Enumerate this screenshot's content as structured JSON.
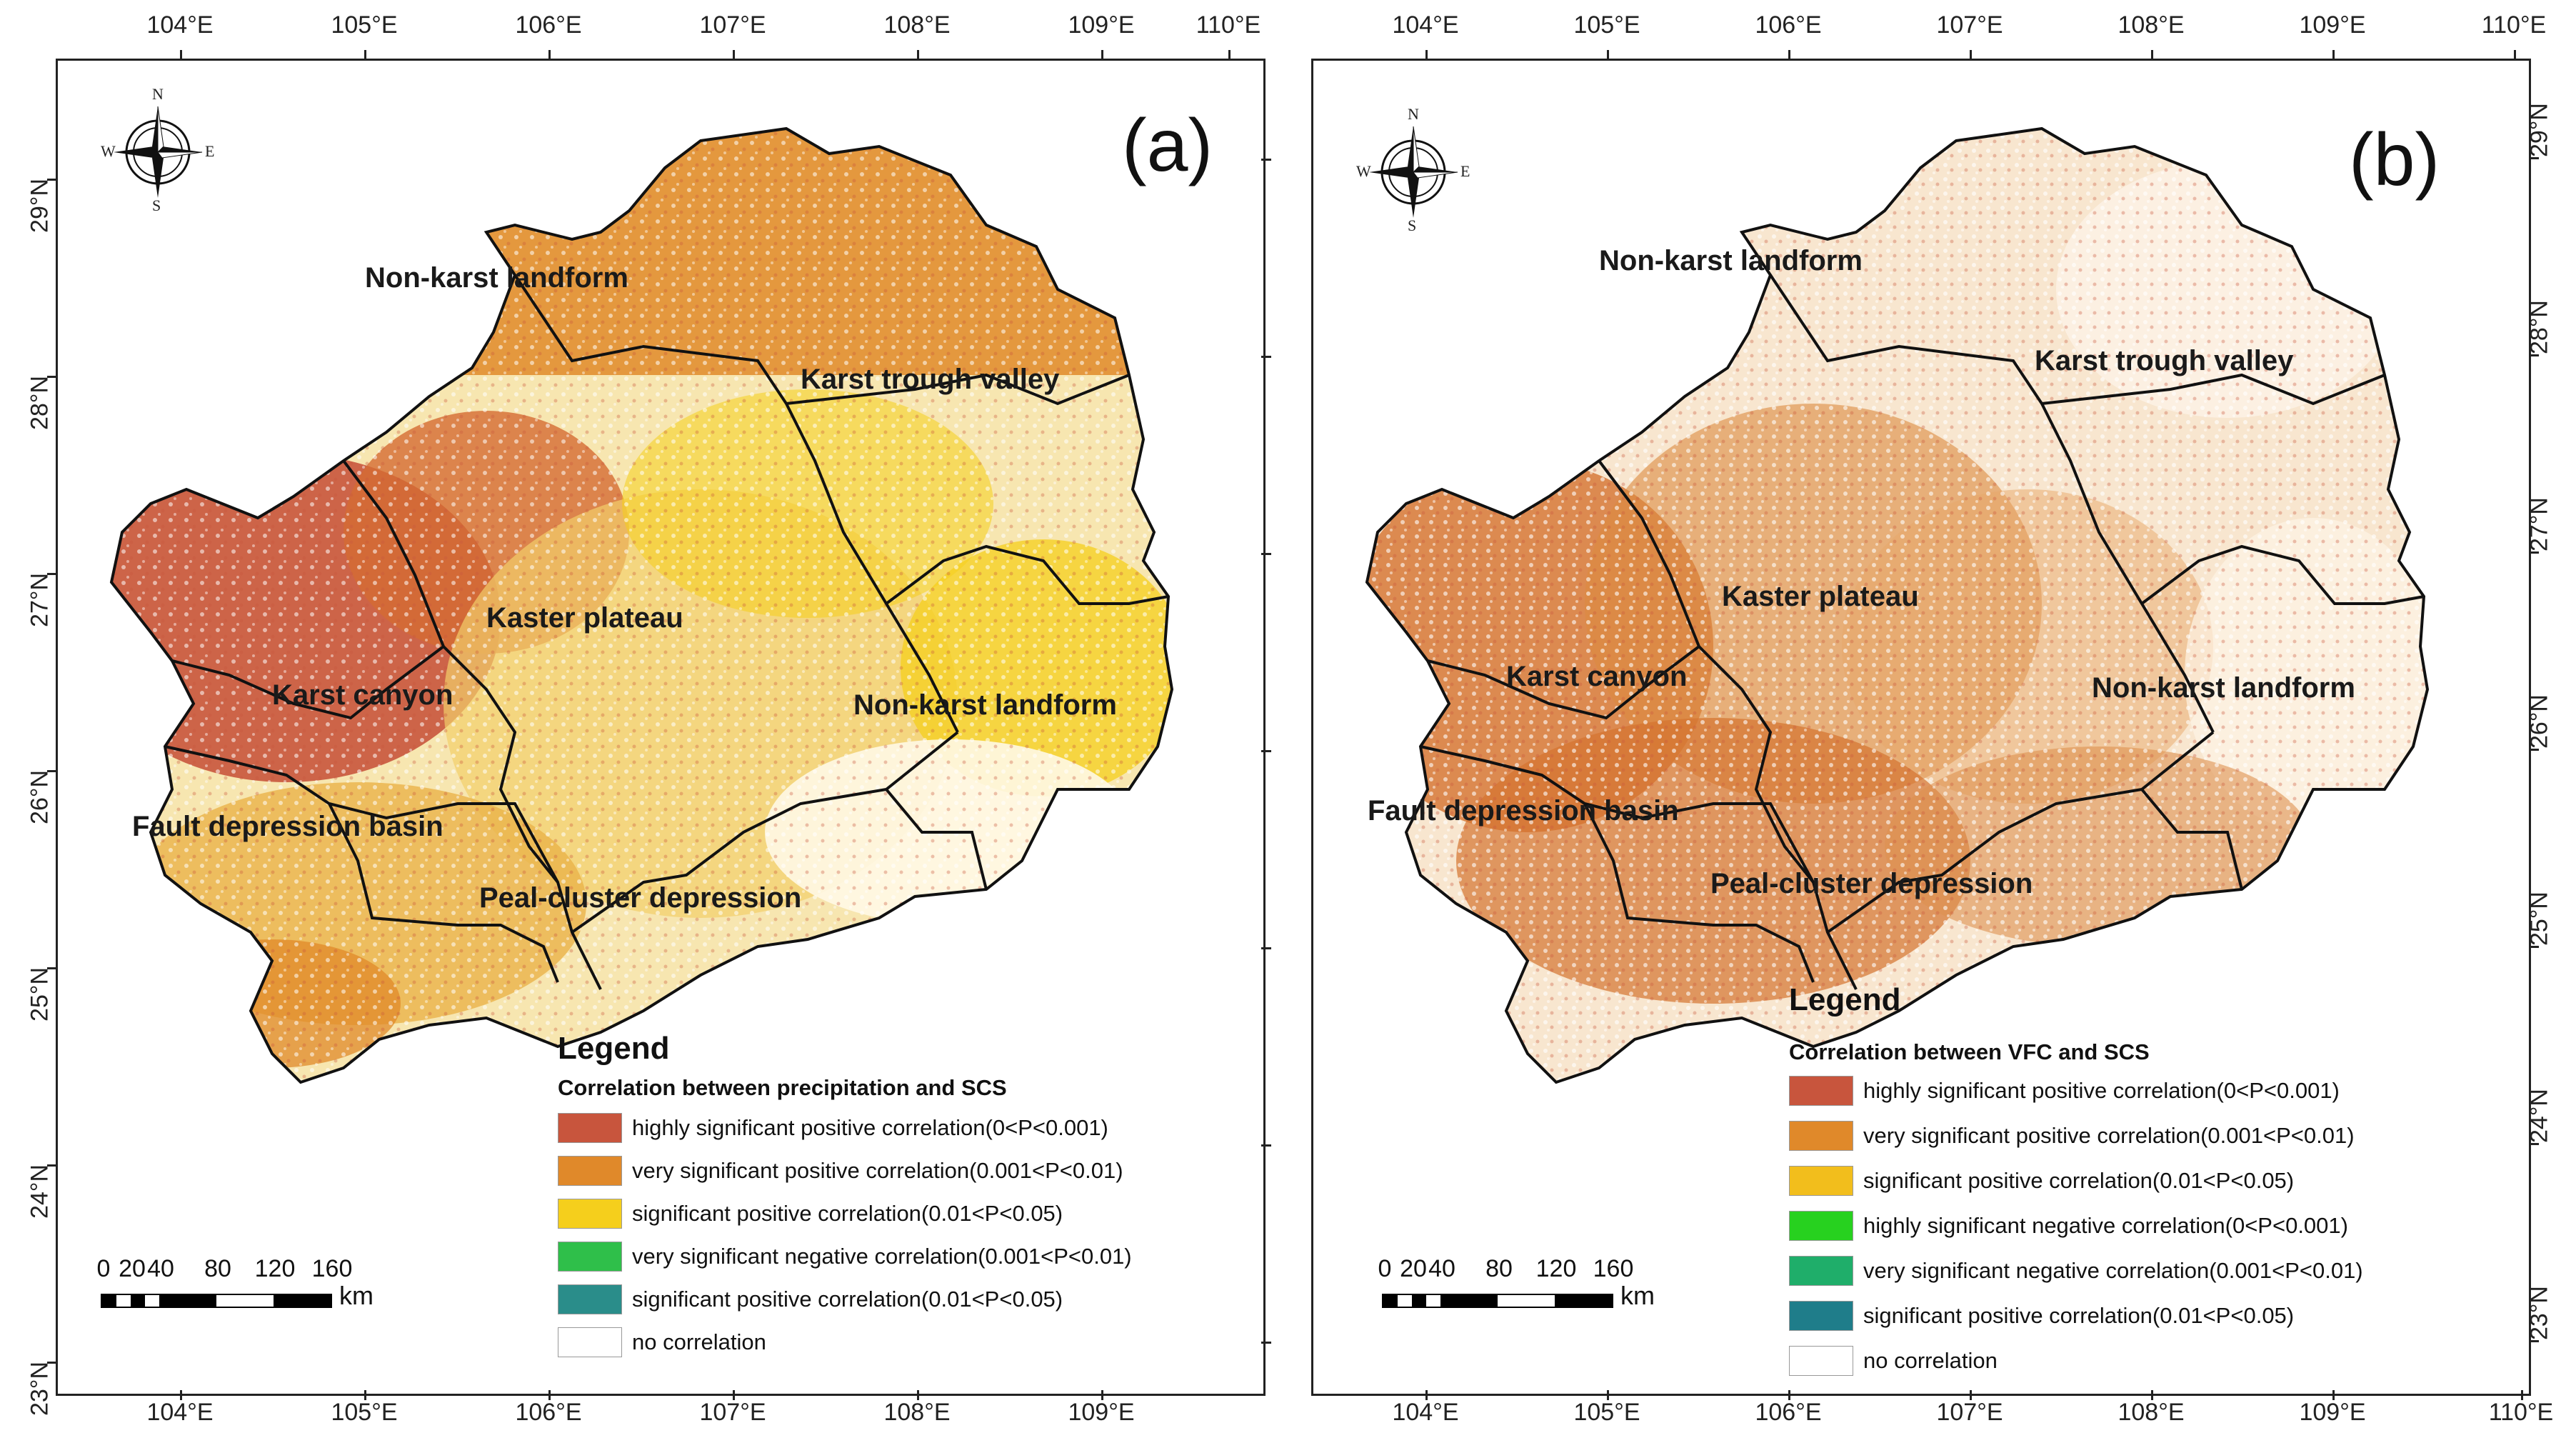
{
  "axes": {
    "longitude_ticks_a_top": [
      "104°E",
      "105°E",
      "106°E",
      "107°E",
      "108°E",
      "109°E",
      "110°E"
    ],
    "longitude_ticks_a_bottom": [
      "104°E",
      "105°E",
      "106°E",
      "107°E",
      "108°E",
      "109°E"
    ],
    "longitude_ticks_b_top": [
      "104°E",
      "105°E",
      "106°E",
      "107°E",
      "108°E",
      "109°E",
      "110°E"
    ],
    "longitude_ticks_b_bottom": [
      "104°E",
      "105°E",
      "106°E",
      "107°E",
      "108°E",
      "109°E",
      "110°E"
    ],
    "latitude_ticks": [
      "29°N",
      "28°N",
      "27°N",
      "26°N",
      "25°N",
      "24°N",
      "23°N"
    ]
  },
  "compass": {
    "n": "N",
    "s": "S",
    "e": "E",
    "w": "W"
  },
  "panel_a": {
    "label": "(a)",
    "regions": {
      "non_karst_nw": "Non-karst landform",
      "karst_trough_valley": "Karst trough valley",
      "kaster_plateau": "Kaster plateau",
      "karst_canyon": "Karst canyon",
      "non_karst_e": "Non-karst landform",
      "fault_depression_basin": "Fault depression basin",
      "peak_cluster_depression": "Peal-cluster depression"
    },
    "legend": {
      "title": "Legend",
      "subtitle": "Correlation between precipitation and SCS",
      "items": [
        {
          "label": "highly significant positive correlation(0<P<0.001)",
          "color": "#c8553d"
        },
        {
          "label": "very significant positive correlation(0.001<P<0.01)",
          "color": "#e0892a"
        },
        {
          "label": "significant positive correlation(0.01<P<0.05)",
          "color": "#f5cf1c"
        },
        {
          "label": "very significant negative correlation(0.001<P<0.01)",
          "color": "#2fbf4a"
        },
        {
          "label": "significant positive correlation(0.01<P<0.05)",
          "color": "#2a8d8a"
        },
        {
          "label": "no correlation",
          "color": "#ffffff"
        }
      ]
    },
    "scalebar": {
      "labels": [
        "0",
        "20",
        "40",
        "80",
        "120",
        "160"
      ],
      "unit": "km"
    }
  },
  "panel_b": {
    "label": "(b)",
    "regions": {
      "non_karst_nw": "Non-karst landform",
      "karst_trough_valley": "Karst trough valley",
      "kaster_plateau": "Kaster plateau",
      "karst_canyon": "Karst canyon",
      "non_karst_e": "Non-karst landform",
      "fault_depression_basin": "Fault depression basin",
      "peak_cluster_depression": "Peal-cluster depression"
    },
    "legend": {
      "title": "Legend",
      "subtitle": "Correlation between VFC and SCS",
      "items": [
        {
          "label": "highly significant positive correlation(0<P<0.001)",
          "color": "#c8553d"
        },
        {
          "label": "very significant positive correlation(0.001<P<0.01)",
          "color": "#e0892a"
        },
        {
          "label": "significant positive correlation(0.01<P<0.05)",
          "color": "#f2be1c"
        },
        {
          "label": "highly significant negative correlation(0<P<0.001)",
          "color": "#27d11f"
        },
        {
          "label": "very significant negative correlation(0.001<P<0.01)",
          "color": "#1fae6a"
        },
        {
          "label": "significant positive correlation(0.01<P<0.05)",
          "color": "#1f7d8a"
        },
        {
          "label": "no correlation",
          "color": "#ffffff"
        }
      ]
    },
    "scalebar": {
      "labels": [
        "0",
        "20",
        "40",
        "80",
        "120",
        "160"
      ],
      "unit": "km"
    }
  }
}
